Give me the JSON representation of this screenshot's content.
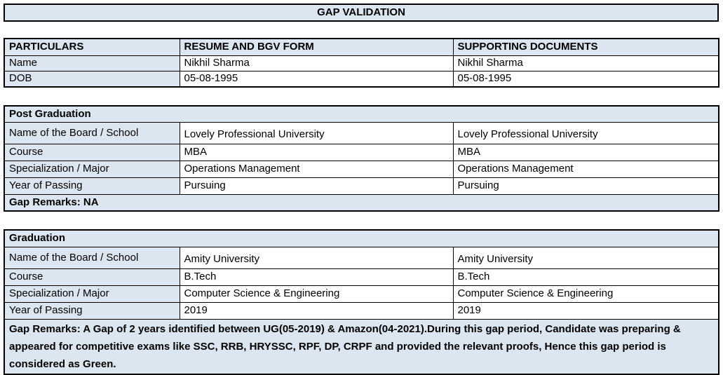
{
  "title": "GAP VALIDATION",
  "colors": {
    "shaded_bg": "#dce6f1",
    "border": "#000000",
    "page_bg": "#ffffff"
  },
  "particulars_table": {
    "headers": [
      "PARTICULARS",
      "RESUME AND BGV FORM",
      "SUPPORTING DOCUMENTS"
    ],
    "rows": [
      {
        "label": "Name",
        "resume": "Nikhil Sharma",
        "supporting": "Nikhil Sharma"
      },
      {
        "label": "DOB",
        "resume": "05-08-1995",
        "supporting": "05-08-1995"
      }
    ]
  },
  "sections": [
    {
      "title": "Post Graduation",
      "rows": [
        {
          "label": "Name of the Board / School",
          "resume": "Lovely Professional University",
          "supporting": "Lovely Professional University"
        },
        {
          "label": "Course",
          "resume": "MBA",
          "supporting": "MBA"
        },
        {
          "label": "Specialization / Major",
          "resume": "Operations Management",
          "supporting": "Operations Management"
        },
        {
          "label": "Year of Passing",
          "resume": "Pursuing",
          "supporting": "Pursuing"
        }
      ],
      "gap_remarks": "Gap Remarks: NA"
    },
    {
      "title": "Graduation",
      "rows": [
        {
          "label": "Name of the Board / School",
          "resume": "Amity University",
          "supporting": "Amity University"
        },
        {
          "label": "Course",
          "resume": "B.Tech",
          "supporting": "B.Tech"
        },
        {
          "label": "Specialization / Major",
          "resume": "Computer Science & Engineering",
          "supporting": "Computer Science & Engineering"
        },
        {
          "label": "Year of Passing",
          "resume": "2019",
          "supporting": "2019"
        }
      ],
      "gap_remarks": "Gap Remarks: A Gap of 2 years identified between UG(05-2019) & Amazon(04-2021).During this gap period, Candidate was preparing & appeared for competitive exams like SSC, RRB, HRYSSC, RPF, DP, CRPF and provided the relevant proofs, Hence this gap period is considered as Green."
    }
  ]
}
